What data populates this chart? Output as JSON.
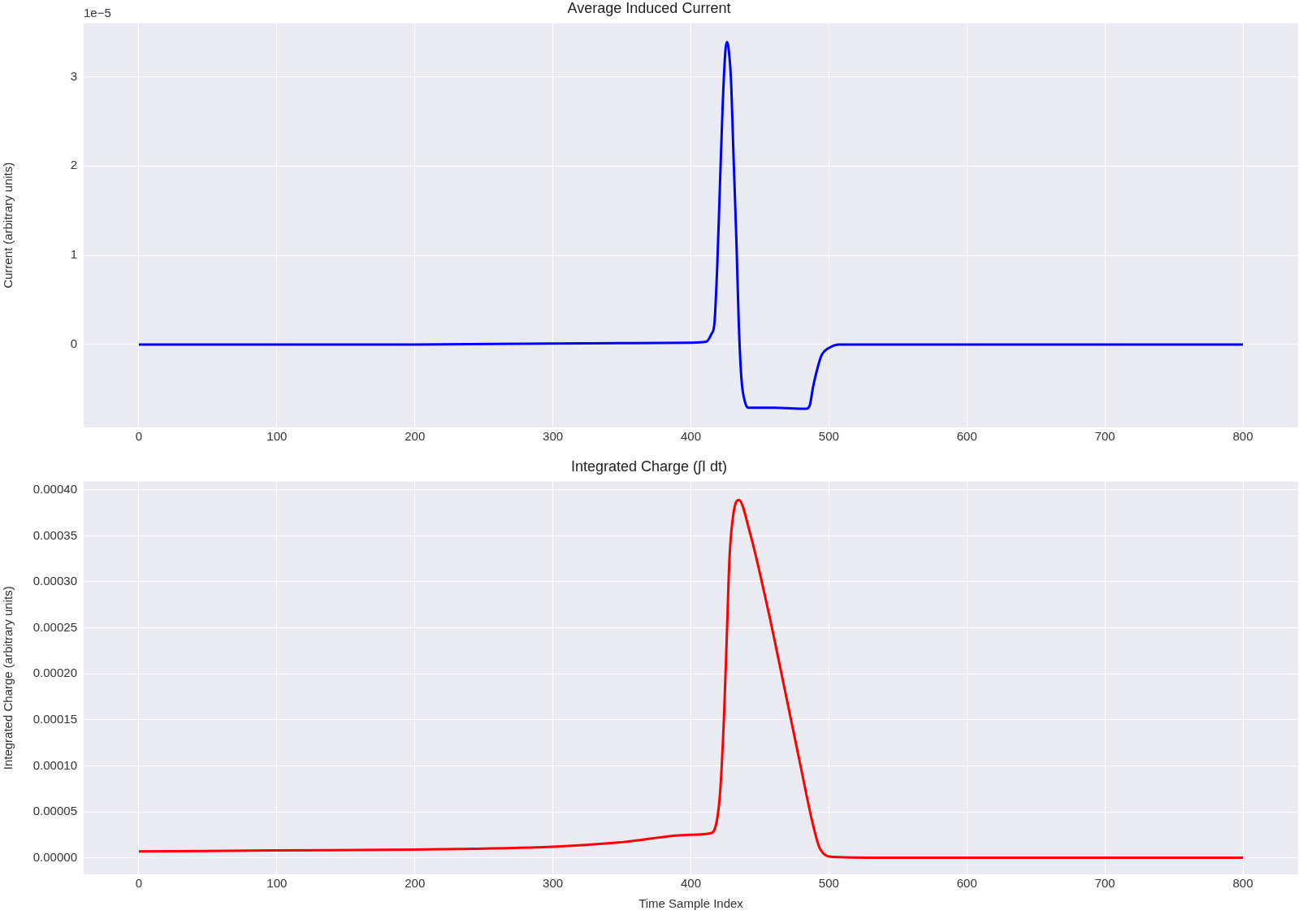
{
  "chart_data": [
    {
      "type": "line",
      "title": "Average Induced Current",
      "ylabel": "Current (arbitrary units)",
      "annotations": [
        "1e−5"
      ],
      "x": [
        0,
        100,
        200,
        300,
        400,
        411,
        415,
        417,
        419,
        421,
        423,
        425,
        426,
        427,
        429,
        431,
        433,
        434.7,
        436.6,
        439.5,
        442,
        460,
        483.5,
        486,
        488.6,
        493.5,
        495,
        501,
        507,
        550,
        600,
        700,
        800
      ],
      "series": [
        {
          "color": "#0000ff",
          "values": [
            0,
            0,
            0,
            0.01,
            0.02,
            0.03,
            0.12,
            0.23,
            0.84,
            1.76,
            2.67,
            3.29,
            3.39,
            3.35,
            2.98,
            2.06,
            1.15,
            0.23,
            -0.38,
            -0.66,
            -0.71,
            -0.71,
            -0.72,
            -0.69,
            -0.47,
            -0.17,
            -0.11,
            -0.03,
            0,
            0,
            0,
            0,
            0
          ]
        }
      ],
      "xlim": [
        -40,
        840
      ],
      "xticks": [
        0,
        100,
        200,
        300,
        400,
        500,
        600,
        700,
        800
      ],
      "ylim": [
        -0.93,
        3.6
      ],
      "yticks": [
        0,
        1,
        2,
        3
      ],
      "grid": true
    },
    {
      "type": "line",
      "title": "Integrated Charge (∫I dt)",
      "xlabel": "Time Sample Index",
      "ylabel": "Integrated Charge (arbitrary units)",
      "x": [
        0,
        100,
        200,
        300,
        350,
        400,
        415,
        421,
        424,
        426,
        428,
        431,
        434.7,
        442.5,
        456,
        468,
        480,
        488,
        493.5,
        503,
        550,
        600,
        700,
        800
      ],
      "series": [
        {
          "color": "#ff0000",
          "values": [
            7e-06,
            8e-06,
            9e-06,
            1.2e-05,
            1.7e-05,
            2.5e-05,
            2.7e-05,
            6.8e-05,
            0.000154,
            0.00024,
            0.000327,
            0.000376,
            0.000389,
            0.000355,
            0.000269,
            0.000183,
            9.6e-05,
            3.9e-05,
            1e-05,
            1e-06,
            0,
            0,
            0,
            0
          ]
        }
      ],
      "xlim": [
        -40,
        840
      ],
      "xticks": [
        0,
        100,
        200,
        300,
        400,
        500,
        600,
        700,
        800
      ],
      "ylim": [
        -1.8e-05,
        0.000409
      ],
      "yticks": [
        {
          "value": 0,
          "label": "0.00000"
        },
        {
          "value": 5e-05,
          "label": "0.00005"
        },
        {
          "value": 0.0001,
          "label": "0.00010"
        },
        {
          "value": 0.00015,
          "label": "0.00015"
        },
        {
          "value": 0.0002,
          "label": "0.00020"
        },
        {
          "value": 0.00025,
          "label": "0.00025"
        },
        {
          "value": 0.0003,
          "label": "0.00030"
        },
        {
          "value": 0.00035,
          "label": "0.00035"
        },
        {
          "value": 0.0004,
          "label": "0.00040"
        }
      ],
      "grid": true
    }
  ]
}
